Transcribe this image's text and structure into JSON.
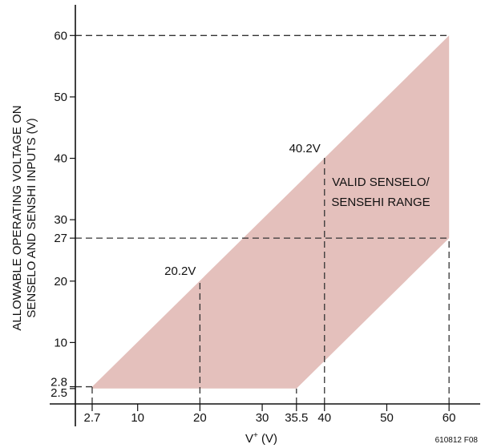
{
  "chart_data": {
    "type": "area",
    "title": "",
    "xlabel": "V",
    "xlabel_sup": "+",
    "xlabel_unit": " (V)",
    "ylabel_lines": [
      "ALLOWABLE OPERATING VOLTAGE ON",
      "SENSELO AND SENSHI INPUTS (V)"
    ],
    "xlim": [
      0,
      65
    ],
    "ylim": [
      0,
      65
    ],
    "x_ticks": [
      2.7,
      10,
      20,
      30,
      35.5,
      40,
      50,
      60
    ],
    "y_ticks": [
      2.5,
      2.8,
      10,
      20,
      27,
      30,
      40,
      50,
      60
    ],
    "region": {
      "label_lines": [
        "VALID SENSELO/",
        "SENSEHI RANGE"
      ],
      "color": "#e4c0bc",
      "polygon": [
        [
          2.7,
          2.5
        ],
        [
          2.7,
          2.8
        ],
        [
          60,
          60
        ],
        [
          60,
          27
        ],
        [
          35.5,
          2.5
        ]
      ]
    },
    "reference_lines": [
      {
        "name": "y60",
        "points": [
          [
            0,
            60
          ],
          [
            60,
            60
          ]
        ]
      },
      {
        "name": "y27",
        "points": [
          [
            0,
            27
          ],
          [
            60,
            27
          ]
        ]
      },
      {
        "name": "x60",
        "points": [
          [
            60,
            0
          ],
          [
            60,
            27
          ]
        ]
      },
      {
        "name": "x40",
        "points": [
          [
            40,
            0
          ],
          [
            40,
            40.2
          ]
        ]
      },
      {
        "name": "x20",
        "points": [
          [
            20,
            0
          ],
          [
            20,
            20.2
          ]
        ]
      },
      {
        "name": "x35_5",
        "points": [
          [
            35.5,
            0
          ],
          [
            35.5,
            2.5
          ]
        ]
      },
      {
        "name": "x2_7",
        "points": [
          [
            2.7,
            0
          ],
          [
            2.7,
            2.8
          ]
        ]
      },
      {
        "name": "y2_8",
        "points": [
          [
            0,
            2.8
          ],
          [
            2.7,
            2.8
          ]
        ]
      }
    ],
    "annotations": [
      {
        "text": "40.2V",
        "x": 40,
        "y": 40.2
      },
      {
        "text": "20.2V",
        "x": 20,
        "y": 20.2
      }
    ],
    "figure_id": "610812 F08",
    "grid": false
  }
}
